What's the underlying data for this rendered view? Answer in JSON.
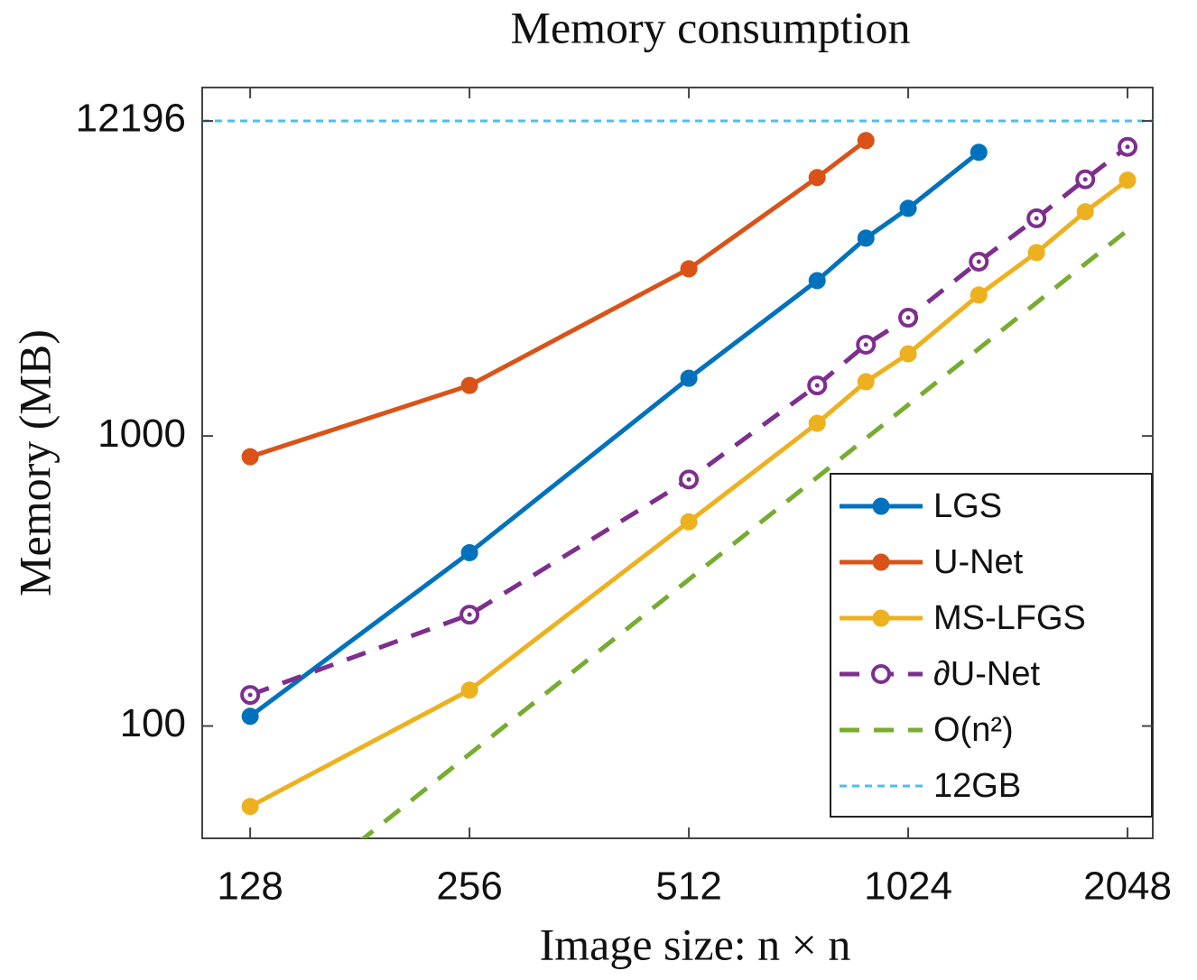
{
  "chart_data": {
    "type": "line",
    "title": "Memory consumption",
    "x_label": "Image size: n × n",
    "y_label": "Memory (MB)",
    "x_scale": "log2",
    "y_scale": "log10",
    "xlim": [
      110,
      2218
    ],
    "ylim": [
      41,
      15900
    ],
    "xticks": [
      128,
      256,
      512,
      1024,
      2048
    ],
    "yticks": [
      100,
      1000,
      12196
    ],
    "legend": "lower right",
    "series": [
      {
        "name": "LGS",
        "color": "#0072bd",
        "line_style": "solid",
        "marker": "filled-circle",
        "x": [
          128,
          256,
          512,
          768,
          896,
          1024,
          1280
        ],
        "values": [
          108,
          396,
          1582,
          3433,
          4810,
          6094,
          9510
        ]
      },
      {
        "name": "U-Net",
        "color": "#d95319",
        "line_style": "solid",
        "marker": "filled-circle",
        "x": [
          128,
          256,
          512,
          768,
          896
        ],
        "values": [
          848,
          1494,
          3770,
          7780,
          10440
        ]
      },
      {
        "name": "MS-LFGS",
        "color": "#edb120",
        "line_style": "solid",
        "marker": "filled-circle",
        "x": [
          128,
          256,
          512,
          768,
          896,
          1024,
          1280,
          1536,
          1792,
          2048
        ],
        "values": [
          52.8,
          133,
          506,
          1106,
          1538,
          1920,
          3063,
          4290,
          5930,
          7620
        ]
      },
      {
        "name": "∂U-Net",
        "color": "#7e2f8e",
        "line_style": "dashed",
        "marker": "open-circle",
        "x": [
          128,
          256,
          512,
          768,
          896,
          1024,
          1280,
          1536,
          1792,
          2048
        ],
        "values": [
          128,
          242,
          708,
          1494,
          2064,
          2558,
          3990,
          5630,
          7670,
          9930
        ]
      },
      {
        "name": "O(n²)",
        "color": "#77ac30",
        "line_style": "dashed",
        "marker": "none",
        "x": [
          128,
          256,
          512,
          1024,
          2048
        ],
        "values": [
          20,
          80,
          320,
          1280,
          5120
        ]
      },
      {
        "name": "12GB",
        "color": "#4dbeee",
        "line_style": "dotted",
        "marker": "none",
        "x": [
          110,
          2218
        ],
        "values": [
          12196,
          12196
        ]
      }
    ]
  }
}
